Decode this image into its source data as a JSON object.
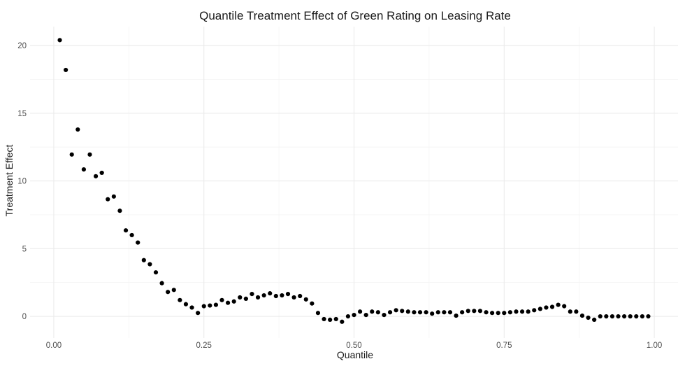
{
  "chart_data": {
    "type": "scatter",
    "title": "Quantile Treatment Effect of Green Rating on Leasing Rate",
    "xlabel": "Quantile",
    "ylabel": "Treatment Effect",
    "xlim": [
      -0.0395,
      1.0395
    ],
    "ylim": [
      -1.6,
      21.4
    ],
    "x_ticks": [
      0.0,
      0.25,
      0.5,
      0.75,
      1.0
    ],
    "x_tick_labels": [
      "0.00",
      "0.25",
      "0.50",
      "0.75",
      "1.00"
    ],
    "y_ticks": [
      0,
      5,
      10,
      15,
      20
    ],
    "y_tick_labels": [
      "0",
      "5",
      "10",
      "15",
      "20"
    ],
    "grid": true,
    "legend": "none",
    "point_color": "#000000",
    "x": [
      0.01,
      0.02,
      0.03,
      0.04,
      0.05,
      0.06,
      0.07,
      0.08,
      0.09,
      0.1,
      0.11,
      0.12,
      0.13,
      0.14,
      0.15,
      0.16,
      0.17,
      0.18,
      0.19,
      0.2,
      0.21,
      0.22,
      0.23,
      0.24,
      0.25,
      0.26,
      0.27,
      0.28,
      0.29,
      0.3,
      0.31,
      0.32,
      0.33,
      0.34,
      0.35,
      0.36,
      0.37,
      0.38,
      0.39,
      0.4,
      0.41,
      0.42,
      0.43,
      0.44,
      0.45,
      0.46,
      0.47,
      0.48,
      0.49,
      0.5,
      0.51,
      0.52,
      0.53,
      0.54,
      0.55,
      0.56,
      0.57,
      0.58,
      0.59,
      0.6,
      0.61,
      0.62,
      0.63,
      0.64,
      0.65,
      0.66,
      0.67,
      0.68,
      0.69,
      0.7,
      0.71,
      0.72,
      0.73,
      0.74,
      0.75,
      0.76,
      0.77,
      0.78,
      0.79,
      0.8,
      0.81,
      0.82,
      0.83,
      0.84,
      0.85,
      0.86,
      0.87,
      0.88,
      0.89,
      0.9,
      0.91,
      0.92,
      0.93,
      0.94,
      0.95,
      0.96,
      0.97,
      0.98,
      0.99
    ],
    "y": [
      20.4,
      18.2,
      11.95,
      13.8,
      10.85,
      11.95,
      10.35,
      10.6,
      8.65,
      8.85,
      7.8,
      6.35,
      6.0,
      5.45,
      4.15,
      3.85,
      3.25,
      2.45,
      1.8,
      1.95,
      1.2,
      0.9,
      0.65,
      0.25,
      0.75,
      0.8,
      0.85,
      1.2,
      1.0,
      1.1,
      1.4,
      1.3,
      1.65,
      1.4,
      1.55,
      1.7,
      1.5,
      1.55,
      1.65,
      1.4,
      1.5,
      1.25,
      0.95,
      0.25,
      -0.2,
      -0.25,
      -0.2,
      -0.4,
      0.0,
      0.1,
      0.35,
      0.1,
      0.35,
      0.3,
      0.1,
      0.3,
      0.45,
      0.4,
      0.35,
      0.3,
      0.3,
      0.3,
      0.2,
      0.3,
      0.3,
      0.3,
      0.05,
      0.3,
      0.4,
      0.4,
      0.4,
      0.3,
      0.25,
      0.25,
      0.25,
      0.3,
      0.35,
      0.35,
      0.35,
      0.45,
      0.55,
      0.65,
      0.7,
      0.85,
      0.75,
      0.35,
      0.35,
      0.05,
      -0.1,
      -0.25,
      0.0,
      0.0,
      0.0,
      0.0,
      0.0,
      0.0,
      0.0,
      0.0,
      0.0
    ]
  }
}
